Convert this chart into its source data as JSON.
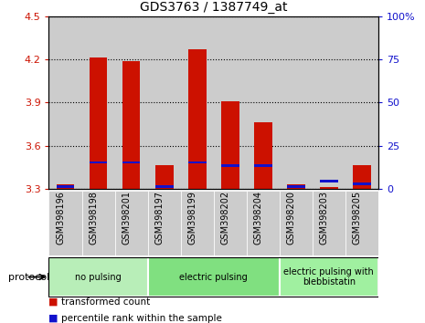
{
  "title": "GDS3763 / 1387749_at",
  "samples": [
    "GSM398196",
    "GSM398198",
    "GSM398201",
    "GSM398197",
    "GSM398199",
    "GSM398202",
    "GSM398204",
    "GSM398200",
    "GSM398203",
    "GSM398205"
  ],
  "red_values": [
    3.335,
    4.21,
    4.19,
    3.465,
    4.27,
    3.91,
    3.765,
    3.335,
    3.315,
    3.465
  ],
  "blue_values": [
    3.305,
    3.475,
    3.475,
    3.31,
    3.475,
    3.455,
    3.455,
    3.305,
    3.345,
    3.325
  ],
  "blue_heights": [
    0.018,
    0.018,
    0.018,
    0.018,
    0.018,
    0.018,
    0.018,
    0.018,
    0.018,
    0.018
  ],
  "ylim_left": [
    3.3,
    4.5
  ],
  "ylim_right": [
    0,
    100
  ],
  "yticks_left": [
    3.3,
    3.6,
    3.9,
    4.2,
    4.5
  ],
  "ytick_labels_left": [
    "3.3",
    "3.6",
    "3.9",
    "4.2",
    "4.5"
  ],
  "yticks_right": [
    0,
    25,
    50,
    75,
    100
  ],
  "ytick_labels_right": [
    "0",
    "25",
    "50",
    "75",
    "100%"
  ],
  "groups": [
    {
      "label": "no pulsing",
      "start": 0,
      "end": 3,
      "color": "#b8eeb8"
    },
    {
      "label": "electric pulsing",
      "start": 3,
      "end": 7,
      "color": "#80e080"
    },
    {
      "label": "electric pulsing with\nblebbistatin",
      "start": 7,
      "end": 10,
      "color": "#a0f0a0"
    }
  ],
  "bar_width": 0.55,
  "red_color": "#cc1100",
  "blue_color": "#1111cc",
  "bg_color": "#cccccc",
  "legend_red": "transformed count",
  "legend_blue": "percentile rank within the sample",
  "protocol_label": "protocol"
}
